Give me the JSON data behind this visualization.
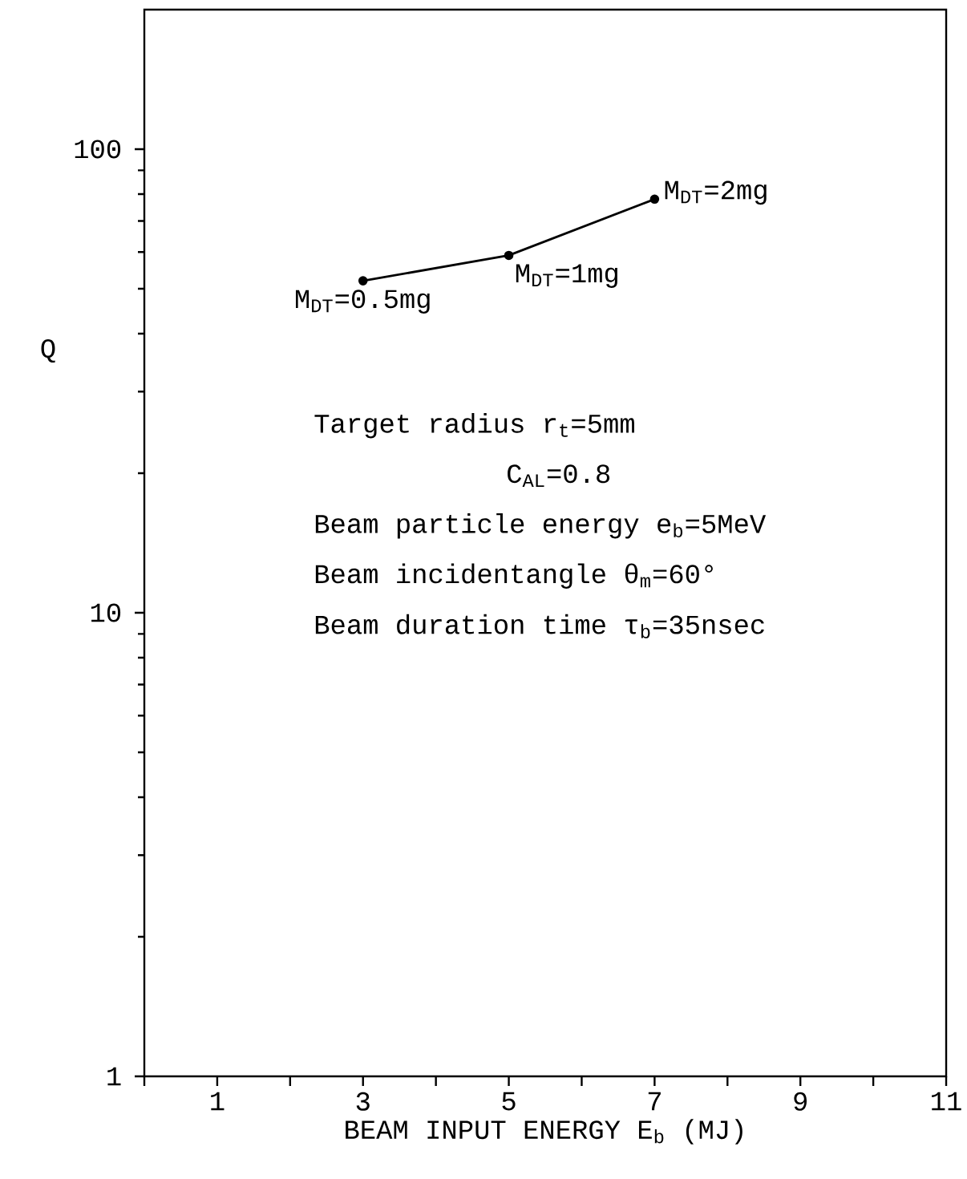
{
  "chart_data": {
    "type": "line",
    "xlabel": "BEAM INPUT ENERGY  E$_{b}$ (MJ)",
    "ylabel": "Q",
    "x": [
      3,
      5,
      7
    ],
    "series": [
      {
        "color": "#000000",
        "values": [
          52,
          59,
          78
        ]
      }
    ],
    "marker": "circle",
    "line_style": "solid",
    "log": "y",
    "xlim": [
      0,
      11
    ],
    "xticks": [
      {
        "value": 0,
        "label": null
      },
      1,
      {
        "value": 2,
        "label": null
      },
      3,
      {
        "value": 4,
        "label": null
      },
      5,
      {
        "value": 6,
        "label": null
      },
      7,
      {
        "value": 8,
        "label": null
      },
      9,
      {
        "value": 10,
        "label": null
      },
      11
    ],
    "ylim": [
      1,
      200
    ],
    "yticks": [
      1,
      {
        "value": 2,
        "label": null
      },
      {
        "value": 3,
        "label": null
      },
      {
        "value": 4,
        "label": null
      },
      {
        "value": 5,
        "label": null
      },
      {
        "value": 6,
        "label": null
      },
      {
        "value": 7,
        "label": null
      },
      {
        "value": 8,
        "label": null
      },
      {
        "value": 9,
        "label": null
      },
      10,
      {
        "value": 20,
        "label": null
      },
      {
        "value": 30,
        "label": null
      },
      {
        "value": 40,
        "label": null
      },
      {
        "value": 50,
        "label": null
      },
      {
        "value": 60,
        "label": null
      },
      {
        "value": 70,
        "label": null
      },
      {
        "value": 80,
        "label": null
      },
      {
        "value": 90,
        "label": null
      },
      100
    ],
    "annotations": [
      {
        "text": "M$_{DT}$=0.5mg",
        "x": 3,
        "y": 52
      },
      {
        "text": "M$_{DT}$=1mg",
        "x": 5,
        "y": 59
      },
      {
        "text": "M$_{DT}$=2mg",
        "x": 7,
        "y": 78
      },
      "Target radius r$_{t}$=5mm",
      "C$_{AL}$=0.8",
      "Beam particle energy e$_{b}$=5MeV",
      "Beam incidentangle θ$_{m}$=60°",
      "Beam duration time τ$_{b}$=35nsec"
    ]
  }
}
